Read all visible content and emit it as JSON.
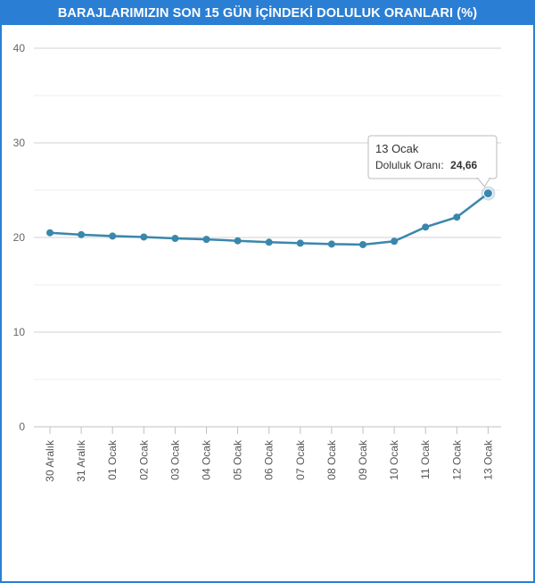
{
  "chart_data": {
    "type": "line",
    "title": "BARAJLARIMIZIN SON 15 GÜN İÇİNDEKİ DOLULUK ORANLARI (%)",
    "categories": [
      "30 Aralık",
      "31 Aralık",
      "01 Ocak",
      "02 Ocak",
      "03 Ocak",
      "04 Ocak",
      "05 Ocak",
      "06 Ocak",
      "07 Ocak",
      "08 Ocak",
      "09 Ocak",
      "10 Ocak",
      "11 Ocak",
      "12 Ocak",
      "13 Ocak"
    ],
    "series": [
      {
        "name": "Doluluk Oranı",
        "values": [
          20.5,
          20.3,
          20.15,
          20.05,
          19.9,
          19.8,
          19.65,
          19.5,
          19.4,
          19.3,
          19.25,
          19.6,
          21.1,
          22.15,
          24.66
        ]
      }
    ],
    "yticks": [
      0,
      10,
      20,
      30,
      40
    ],
    "ylim": [
      0,
      40
    ],
    "xlabel": "",
    "ylabel": "",
    "grid": true,
    "line_color": "#3a87ad",
    "tooltip": {
      "title": "13 Ocak",
      "label": "Doluluk Oranı:",
      "value": "24,66",
      "index": 14
    }
  }
}
